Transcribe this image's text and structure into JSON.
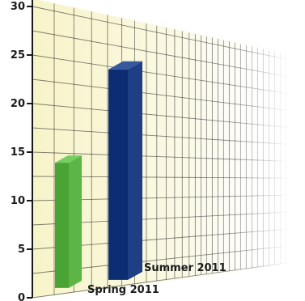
{
  "chart_data": {
    "type": "bar",
    "title": "",
    "xlabel": "",
    "ylabel": "",
    "categories": [
      "Spring 2011",
      "Summer 2011"
    ],
    "values": [
      14,
      25
    ],
    "ylim": [
      0,
      30
    ],
    "yticks": [
      0,
      5,
      10,
      15,
      20,
      25,
      30
    ],
    "grid": true,
    "bar_colors": [
      "#5cb646",
      "#1f3f85"
    ],
    "background_color": "#f7f4c9",
    "grid_color": "#1a1a1a"
  }
}
